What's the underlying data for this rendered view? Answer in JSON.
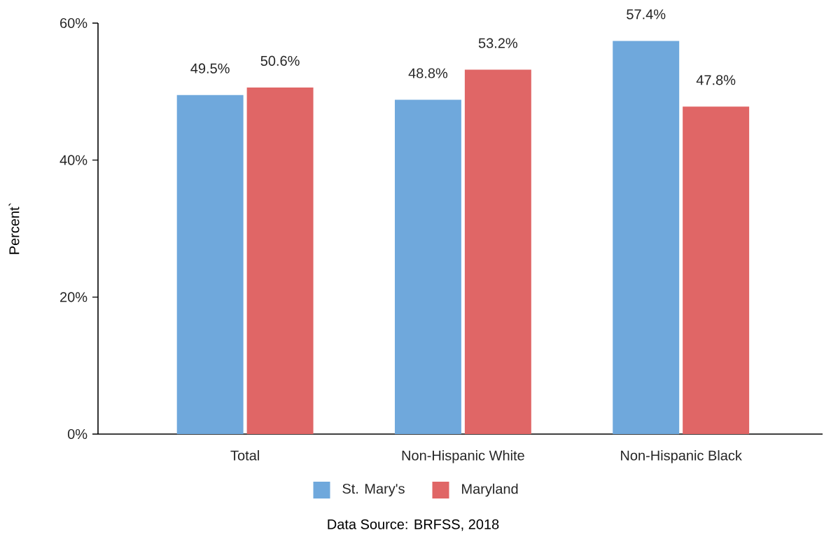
{
  "chart_data": {
    "type": "bar",
    "ylabel": "Percent`",
    "categories": [
      "Total",
      "Non-Hispanic White",
      "Non-Hispanic Black"
    ],
    "series": [
      {
        "name": "St. Mary's",
        "color": "#6fa8dc",
        "values": [
          49.5,
          48.8,
          57.4
        ],
        "value_labels": [
          "49.5%",
          "48.8%",
          "57.4%"
        ]
      },
      {
        "name": "Maryland",
        "color": "#e06666",
        "values": [
          50.6,
          53.2,
          47.8
        ],
        "value_labels": [
          "50.6%",
          "53.2%",
          "47.8%"
        ]
      }
    ],
    "ylim": [
      0,
      60
    ],
    "yticks": [
      {
        "value": 0,
        "label": "0%"
      },
      {
        "value": 20,
        "label": "20%"
      },
      {
        "value": 40,
        "label": "40%"
      },
      {
        "value": 60,
        "label": "60%"
      }
    ],
    "legend": "bottom",
    "annotations": [
      "Data Source: BRFSS, 2018"
    ]
  }
}
